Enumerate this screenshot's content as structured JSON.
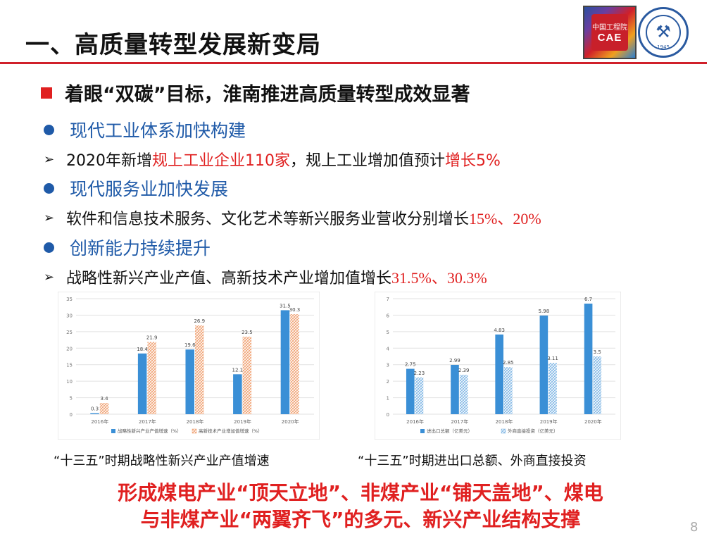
{
  "title": "一、高质量转型发展新变局",
  "logos": {
    "cae_cn": "中国工程院",
    "cae_en": "CAE",
    "univ_year": "1945"
  },
  "subtitle": "着眼“双碳”目标，淮南推进高质量转型成效显著",
  "sections": [
    {
      "heading": "现代工业体系加快构建",
      "detail": {
        "pre": "2020年新增",
        "red1": "规上工业企业110家",
        "mid": "，规上工业增加值预计",
        "red2": "增长5%"
      }
    },
    {
      "heading": "现代服务业加快发展",
      "detail": {
        "pre": "软件和信息技术服务、文化艺术等新兴服务业营收分别增长",
        "red1": "15%、20%"
      }
    },
    {
      "heading": "创新能力持续提升",
      "detail": {
        "pre": "战略性新兴产业产值、高新技术产业增加值增长",
        "red1": "31.5%、30.3%"
      }
    }
  ],
  "chart_data": [
    {
      "type": "bar",
      "categories": [
        "2016年",
        "2017年",
        "2018年",
        "2019年",
        "2020年"
      ],
      "series": [
        {
          "name": "战略性新兴产业产值增速（%）",
          "values": [
            0.3,
            18.4,
            19.6,
            12.1,
            31.5
          ],
          "color": "#3a8fd6",
          "pattern": "solid"
        },
        {
          "name": "高新技术产业增加值增速（%）",
          "values": [
            3.4,
            21.9,
            26.9,
            23.5,
            30.3
          ],
          "color": "#f0a070",
          "pattern": "hatch"
        }
      ],
      "ylim": [
        0,
        35
      ],
      "yticks": [
        0,
        5,
        10,
        15,
        20,
        25,
        30,
        35
      ],
      "grid": true,
      "legend": "bottom",
      "caption": "“十三五”时期战略性新兴产业产值增速"
    },
    {
      "type": "bar",
      "categories": [
        "2016年",
        "2017年",
        "2018年",
        "2019年",
        "2020年"
      ],
      "series": [
        {
          "name": "进出口总额（亿美元）",
          "values": [
            2.75,
            2.99,
            4.83,
            5.98,
            6.7
          ],
          "color": "#3a8fd6",
          "pattern": "solid"
        },
        {
          "name": "外商直接投资（亿美元）",
          "values": [
            2.23,
            2.39,
            2.85,
            3.11,
            3.5
          ],
          "color": "#7fb6e4",
          "pattern": "hatch"
        }
      ],
      "ylim": [
        0,
        7
      ],
      "yticks": [
        0,
        1,
        2,
        3,
        4,
        5,
        6,
        7
      ],
      "grid": true,
      "legend": "bottom",
      "caption": "“十三五”时期进出口总额、外商直接投资"
    }
  ],
  "conclusion": {
    "line1": "形成煤电产业“顶天立地”、非煤产业“铺天盖地”、煤电",
    "line2": "与非煤产业“两翼齐飞”的多元、新兴产业结构支撑"
  },
  "page_number": "8"
}
